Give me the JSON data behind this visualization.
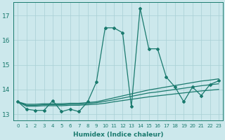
{
  "xlabel": "Humidex (Indice chaleur)",
  "background_color": "#cce8ec",
  "grid_color": "#a8cfd4",
  "line_color": "#1a7a6e",
  "xlim": [
    -0.5,
    23.5
  ],
  "ylim": [
    12.75,
    17.55
  ],
  "yticks": [
    13,
    14,
    15,
    16,
    17
  ],
  "xticks": [
    0,
    1,
    2,
    3,
    4,
    5,
    6,
    7,
    8,
    9,
    10,
    11,
    12,
    13,
    14,
    15,
    16,
    17,
    18,
    19,
    20,
    21,
    22,
    23
  ],
  "main_y": [
    13.5,
    13.2,
    13.15,
    13.15,
    13.55,
    13.1,
    13.2,
    13.1,
    13.5,
    14.3,
    16.5,
    16.5,
    16.3,
    13.3,
    17.3,
    15.65,
    15.65,
    14.5,
    14.1,
    13.5,
    14.1,
    13.75,
    14.2,
    14.35
  ],
  "line1_y": [
    13.5,
    13.32,
    13.32,
    13.34,
    13.34,
    13.34,
    13.36,
    13.36,
    13.38,
    13.4,
    13.44,
    13.5,
    13.55,
    13.6,
    13.65,
    13.7,
    13.74,
    13.78,
    13.82,
    13.86,
    13.9,
    13.94,
    13.97,
    14.0
  ],
  "line2_y": [
    13.5,
    13.36,
    13.36,
    13.38,
    13.38,
    13.38,
    13.4,
    13.4,
    13.43,
    13.46,
    13.52,
    13.58,
    13.65,
    13.72,
    13.79,
    13.86,
    13.9,
    13.95,
    14.0,
    14.05,
    14.1,
    14.15,
    14.19,
    14.23
  ],
  "line3_y": [
    13.5,
    13.4,
    13.4,
    13.42,
    13.42,
    13.42,
    13.44,
    13.44,
    13.47,
    13.5,
    13.58,
    13.66,
    13.74,
    13.82,
    13.9,
    13.98,
    14.04,
    14.1,
    14.16,
    14.22,
    14.28,
    14.34,
    14.38,
    14.43
  ]
}
